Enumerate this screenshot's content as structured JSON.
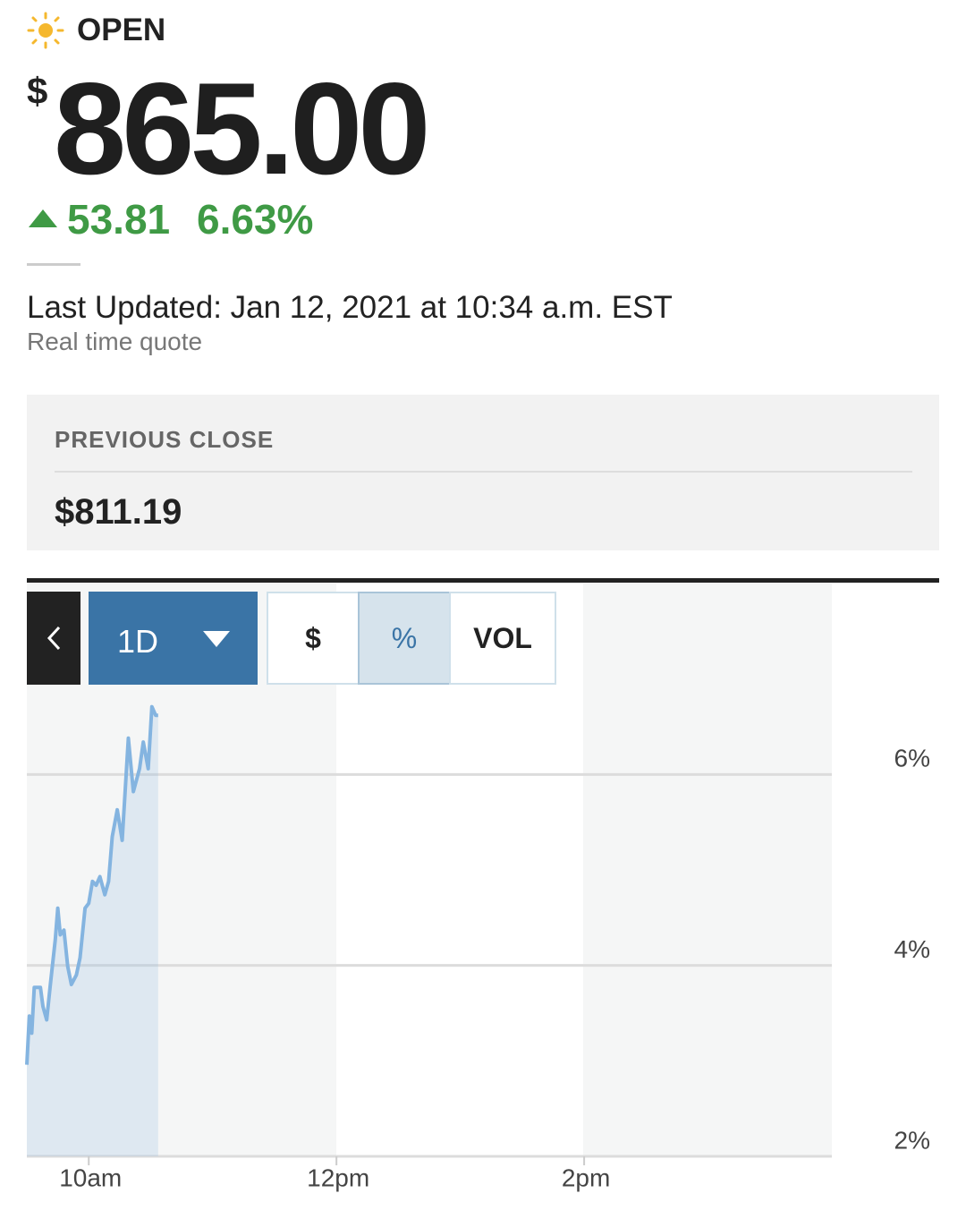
{
  "status": "OPEN",
  "price": {
    "currency": "$",
    "value": "865.00"
  },
  "change": {
    "amount": "53.81",
    "percent": "6.63%"
  },
  "last_updated": "Last Updated: Jan 12, 2021 at 10:34 a.m. EST",
  "quote_type": "Real time quote",
  "previous_close": {
    "label": "PREVIOUS CLOSE",
    "value": "$811.19"
  },
  "chart_controls": {
    "range": "1D",
    "modes": [
      "$",
      "%",
      "VOL"
    ],
    "selected_mode": 1
  },
  "chart_data": {
    "type": "line",
    "x": [
      9.5,
      9.52,
      9.54,
      9.56,
      9.61,
      9.63,
      9.66,
      9.69,
      9.73,
      9.75,
      9.77,
      9.8,
      9.83,
      9.86,
      9.9,
      9.93,
      9.97,
      10.0,
      10.03,
      10.06,
      10.09,
      10.13,
      10.16,
      10.19,
      10.23,
      10.27,
      10.32,
      10.36,
      10.41,
      10.44,
      10.48,
      10.51,
      10.54,
      10.56
    ],
    "values": [
      2.96,
      3.47,
      3.29,
      3.77,
      3.77,
      3.57,
      3.43,
      3.8,
      4.27,
      4.6,
      4.32,
      4.37,
      3.99,
      3.8,
      3.9,
      4.08,
      4.6,
      4.65,
      4.88,
      4.84,
      4.93,
      4.74,
      4.88,
      5.35,
      5.63,
      5.31,
      6.38,
      5.82,
      6.06,
      6.34,
      6.06,
      6.71,
      6.62,
      6.62
    ],
    "color": "#84b4e0",
    "xlim": [
      9.5,
      16
    ],
    "xticks": [
      {
        "value": 10,
        "label": "10am"
      },
      {
        "value": 12,
        "label": "12pm"
      },
      {
        "value": 14,
        "label": "2pm"
      }
    ],
    "ylim": [
      2,
      8
    ],
    "yticks": [
      {
        "value": 2,
        "label": "2%"
      },
      {
        "value": 4,
        "label": "4%"
      },
      {
        "value": 6,
        "label": "6%"
      }
    ],
    "grid": true
  }
}
